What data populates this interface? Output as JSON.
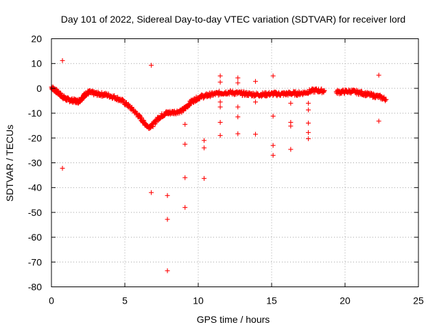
{
  "chart_data": {
    "type": "scatter",
    "title": "Day 101 of 2022, Sidereal Day-to-day VTEC variation (SDTVAR) for receiver lord",
    "xlabel": "GPS time / hours",
    "ylabel": "SDTVAR / TECUs",
    "xlim": [
      0,
      25
    ],
    "ylim": [
      -80,
      20
    ],
    "xticks": [
      0,
      5,
      10,
      15,
      20,
      25
    ],
    "yticks": [
      20,
      10,
      0,
      -10,
      -20,
      -30,
      -40,
      -50,
      -60,
      -70,
      -80
    ],
    "grid": true,
    "marker": "+",
    "color": "#ff0000",
    "series": [
      {
        "name": "SDTVAR",
        "trend": [
          [
            0.0,
            0.5
          ],
          [
            0.2,
            -0.5
          ],
          [
            0.4,
            -1.5
          ],
          [
            0.6,
            -2.5
          ],
          [
            0.8,
            -3.5
          ],
          [
            1.0,
            -4.3
          ],
          [
            1.3,
            -4.8
          ],
          [
            1.6,
            -5.0
          ],
          [
            1.8,
            -5.3
          ],
          [
            2.0,
            -4.5
          ],
          [
            2.2,
            -3.0
          ],
          [
            2.4,
            -2.0
          ],
          [
            2.6,
            -1.6
          ],
          [
            2.9,
            -2.0
          ],
          [
            3.2,
            -2.3
          ],
          [
            3.6,
            -2.5
          ],
          [
            4.0,
            -3.0
          ],
          [
            4.4,
            -3.8
          ],
          [
            4.8,
            -5.0
          ],
          [
            5.2,
            -6.8
          ],
          [
            5.6,
            -9.0
          ],
          [
            6.0,
            -11.5
          ],
          [
            6.3,
            -13.8
          ],
          [
            6.6,
            -15.5
          ],
          [
            6.9,
            -14.8
          ],
          [
            7.2,
            -12.5
          ],
          [
            7.5,
            -11.0
          ],
          [
            7.8,
            -10.0
          ],
          [
            8.1,
            -9.8
          ],
          [
            8.5,
            -9.5
          ],
          [
            8.9,
            -9.0
          ],
          [
            9.2,
            -7.5
          ],
          [
            9.5,
            -5.5
          ],
          [
            9.8,
            -4.5
          ],
          [
            10.1,
            -3.5
          ],
          [
            10.5,
            -3.0
          ],
          [
            10.8,
            -2.6
          ],
          [
            11.2,
            -2.2
          ],
          [
            11.6,
            -1.8
          ],
          [
            12.0,
            -1.6
          ],
          [
            12.4,
            -1.8
          ],
          [
            12.8,
            -2.0
          ],
          [
            13.2,
            -2.2
          ],
          [
            13.6,
            -2.4
          ],
          [
            14.0,
            -2.5
          ],
          [
            14.4,
            -2.5
          ],
          [
            14.8,
            -2.3
          ],
          [
            15.2,
            -2.2
          ],
          [
            15.6,
            -2.3
          ],
          [
            16.0,
            -2.2
          ],
          [
            16.4,
            -2.0
          ],
          [
            16.8,
            -2.1
          ],
          [
            17.2,
            -1.8
          ],
          [
            17.6,
            -1.2
          ],
          [
            18.0,
            -0.8
          ],
          [
            18.4,
            -1.0
          ],
          [
            18.8,
            -1.2
          ],
          [
            19.2,
            -1.3
          ],
          [
            19.6,
            -1.5
          ],
          [
            20.0,
            -1.3
          ],
          [
            20.4,
            -1.2
          ],
          [
            20.8,
            -1.5
          ],
          [
            21.2,
            -2.0
          ],
          [
            21.6,
            -2.5
          ],
          [
            22.0,
            -3.0
          ],
          [
            22.4,
            -3.5
          ],
          [
            22.8,
            -4.5
          ]
        ],
        "trend_gaps": [
          [
            18.6,
            19.4
          ]
        ],
        "outliers": [
          [
            0.75,
            11.2
          ],
          [
            0.75,
            -32.2
          ],
          [
            6.8,
            9.3
          ],
          [
            6.8,
            -42.0
          ],
          [
            7.9,
            -43.2
          ],
          [
            7.9,
            -52.8
          ],
          [
            7.9,
            -73.5
          ],
          [
            9.1,
            -14.5
          ],
          [
            9.1,
            -22.5
          ],
          [
            9.1,
            -36.0
          ],
          [
            9.1,
            -48.0
          ],
          [
            10.4,
            -21.0
          ],
          [
            10.4,
            -24.0
          ],
          [
            10.4,
            -36.3
          ],
          [
            11.5,
            5.0
          ],
          [
            11.5,
            2.5
          ],
          [
            11.5,
            -5.5
          ],
          [
            11.5,
            -7.5
          ],
          [
            11.5,
            -13.7
          ],
          [
            11.5,
            -19.0
          ],
          [
            12.7,
            4.2
          ],
          [
            12.7,
            2.2
          ],
          [
            12.7,
            -7.5
          ],
          [
            12.7,
            -11.5
          ],
          [
            12.7,
            -18.3
          ],
          [
            13.9,
            2.8
          ],
          [
            13.9,
            -5.5
          ],
          [
            13.9,
            -18.5
          ],
          [
            15.1,
            5.0
          ],
          [
            15.1,
            -11.2
          ],
          [
            15.1,
            -23.0
          ],
          [
            15.1,
            -27.0
          ],
          [
            16.3,
            -6.0
          ],
          [
            16.3,
            -13.7
          ],
          [
            16.3,
            -15.2
          ],
          [
            16.3,
            -24.6
          ],
          [
            17.5,
            -6.0
          ],
          [
            17.5,
            -8.7
          ],
          [
            17.5,
            -14.0
          ],
          [
            17.5,
            -17.8
          ],
          [
            17.5,
            -20.3
          ],
          [
            22.3,
            5.3
          ],
          [
            22.3,
            -13.2
          ]
        ]
      }
    ]
  }
}
